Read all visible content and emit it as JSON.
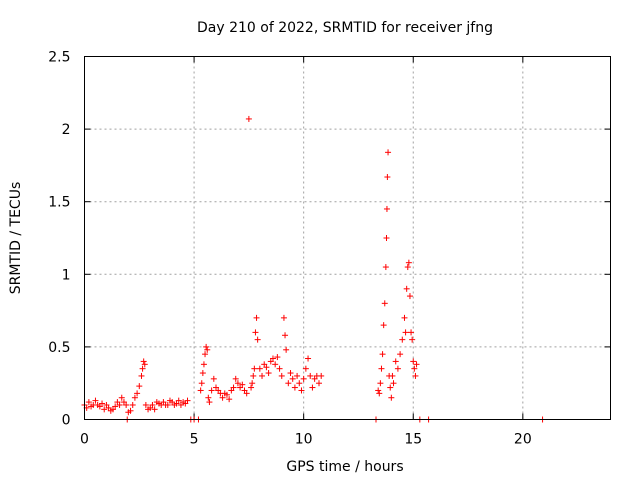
{
  "chart_data": {
    "type": "scatter",
    "title": "Day 210 of 2022, SRMTID for receiver jfng",
    "xlabel": "GPS time / hours",
    "ylabel": "SRMTID / TECUs",
    "xlim": [
      0,
      24
    ],
    "ylim": [
      0,
      2.5
    ],
    "xticks": [
      0,
      5,
      10,
      15,
      20
    ],
    "xtick_labels": [
      "0",
      "5",
      "10",
      "15",
      "20"
    ],
    "yticks": [
      0,
      0.5,
      1,
      1.5,
      2,
      2.5
    ],
    "ytick_labels": [
      "0",
      "0.5",
      "1",
      "1.5",
      "2",
      "2.5"
    ],
    "grid": true,
    "marker": "+",
    "series": [
      {
        "name": "SRMTID",
        "color": "#ff0000",
        "points": [
          [
            0.0,
            0.1
          ],
          [
            0.1,
            0.08
          ],
          [
            0.2,
            0.12
          ],
          [
            0.3,
            0.09
          ],
          [
            0.4,
            0.1
          ],
          [
            0.5,
            0.13
          ],
          [
            0.6,
            0.1
          ],
          [
            0.7,
            0.09
          ],
          [
            0.8,
            0.11
          ],
          [
            0.9,
            0.07
          ],
          [
            1.0,
            0.1
          ],
          [
            1.1,
            0.08
          ],
          [
            1.2,
            0.06
          ],
          [
            1.3,
            0.07
          ],
          [
            1.4,
            0.09
          ],
          [
            1.5,
            0.12
          ],
          [
            1.6,
            0.1
          ],
          [
            1.7,
            0.15
          ],
          [
            1.8,
            0.12
          ],
          [
            1.9,
            0.1
          ],
          [
            2.0,
            0.05
          ],
          [
            2.1,
            0.06
          ],
          [
            2.2,
            0.1
          ],
          [
            2.3,
            0.15
          ],
          [
            2.4,
            0.18
          ],
          [
            2.5,
            0.23
          ],
          [
            2.6,
            0.3
          ],
          [
            2.65,
            0.35
          ],
          [
            2.7,
            0.4
          ],
          [
            2.75,
            0.38
          ],
          [
            2.8,
            0.1
          ],
          [
            2.9,
            0.07
          ],
          [
            3.0,
            0.08
          ],
          [
            3.1,
            0.1
          ],
          [
            3.2,
            0.07
          ],
          [
            3.3,
            0.12
          ],
          [
            3.4,
            0.11
          ],
          [
            3.5,
            0.1
          ],
          [
            3.6,
            0.12
          ],
          [
            3.7,
            0.1
          ],
          [
            3.8,
            0.1
          ],
          [
            3.9,
            0.13
          ],
          [
            4.0,
            0.12
          ],
          [
            4.1,
            0.1
          ],
          [
            4.2,
            0.11
          ],
          [
            4.3,
            0.13
          ],
          [
            4.4,
            0.1
          ],
          [
            4.5,
            0.12
          ],
          [
            4.6,
            0.11
          ],
          [
            4.7,
            0.13
          ],
          [
            5.3,
            0.2
          ],
          [
            5.35,
            0.25
          ],
          [
            5.4,
            0.32
          ],
          [
            5.45,
            0.38
          ],
          [
            5.5,
            0.45
          ],
          [
            5.55,
            0.5
          ],
          [
            5.6,
            0.48
          ],
          [
            5.65,
            0.15
          ],
          [
            5.7,
            0.12
          ],
          [
            5.8,
            0.2
          ],
          [
            5.9,
            0.28
          ],
          [
            6.0,
            0.22
          ],
          [
            6.1,
            0.2
          ],
          [
            6.2,
            0.18
          ],
          [
            6.3,
            0.15
          ],
          [
            6.4,
            0.18
          ],
          [
            6.5,
            0.17
          ],
          [
            6.6,
            0.14
          ],
          [
            6.7,
            0.2
          ],
          [
            6.8,
            0.22
          ],
          [
            6.9,
            0.28
          ],
          [
            7.0,
            0.25
          ],
          [
            7.1,
            0.22
          ],
          [
            7.2,
            0.24
          ],
          [
            7.3,
            0.2
          ],
          [
            7.4,
            0.18
          ],
          [
            7.5,
            2.07
          ],
          [
            7.6,
            0.22
          ],
          [
            7.65,
            0.25
          ],
          [
            7.7,
            0.3
          ],
          [
            7.75,
            0.35
          ],
          [
            7.8,
            0.6
          ],
          [
            7.85,
            0.7
          ],
          [
            7.9,
            0.55
          ],
          [
            8.0,
            0.35
          ],
          [
            8.1,
            0.3
          ],
          [
            8.2,
            0.38
          ],
          [
            8.3,
            0.36
          ],
          [
            8.4,
            0.32
          ],
          [
            8.5,
            0.4
          ],
          [
            8.6,
            0.42
          ],
          [
            8.7,
            0.38
          ],
          [
            8.8,
            0.43
          ],
          [
            8.9,
            0.35
          ],
          [
            9.0,
            0.3
          ],
          [
            9.1,
            0.7
          ],
          [
            9.15,
            0.58
          ],
          [
            9.2,
            0.48
          ],
          [
            9.3,
            0.25
          ],
          [
            9.4,
            0.32
          ],
          [
            9.5,
            0.28
          ],
          [
            9.6,
            0.22
          ],
          [
            9.7,
            0.3
          ],
          [
            9.8,
            0.25
          ],
          [
            9.9,
            0.2
          ],
          [
            10.0,
            0.28
          ],
          [
            10.1,
            0.35
          ],
          [
            10.2,
            0.42
          ],
          [
            10.3,
            0.3
          ],
          [
            10.4,
            0.22
          ],
          [
            10.5,
            0.28
          ],
          [
            10.6,
            0.3
          ],
          [
            10.7,
            0.25
          ],
          [
            10.8,
            0.3
          ],
          [
            13.4,
            0.2
          ],
          [
            13.45,
            0.18
          ],
          [
            13.5,
            0.25
          ],
          [
            13.55,
            0.35
          ],
          [
            13.6,
            0.45
          ],
          [
            13.65,
            0.65
          ],
          [
            13.7,
            0.8
          ],
          [
            13.75,
            1.05
          ],
          [
            13.78,
            1.25
          ],
          [
            13.8,
            1.45
          ],
          [
            13.82,
            1.67
          ],
          [
            13.85,
            1.84
          ],
          [
            13.9,
            0.3
          ],
          [
            13.95,
            0.22
          ],
          [
            14.0,
            0.15
          ],
          [
            14.05,
            0.3
          ],
          [
            14.1,
            0.25
          ],
          [
            14.2,
            0.4
          ],
          [
            14.3,
            0.35
          ],
          [
            14.4,
            0.45
          ],
          [
            14.5,
            0.55
          ],
          [
            14.6,
            0.7
          ],
          [
            14.65,
            0.6
          ],
          [
            14.7,
            0.9
          ],
          [
            14.75,
            1.05
          ],
          [
            14.8,
            1.08
          ],
          [
            14.85,
            0.85
          ],
          [
            14.9,
            0.6
          ],
          [
            14.95,
            0.55
          ],
          [
            15.0,
            0.4
          ],
          [
            15.05,
            0.35
          ],
          [
            15.1,
            0.3
          ],
          [
            15.15,
            0.38
          ],
          [
            13.3,
            0.0
          ],
          [
            15.3,
            0.0
          ],
          [
            15.7,
            0.0
          ],
          [
            20.9,
            0.0
          ],
          [
            1.95,
            0.0
          ],
          [
            4.85,
            0.0
          ],
          [
            5.0,
            0.0
          ],
          [
            5.2,
            0.0
          ]
        ]
      }
    ]
  }
}
